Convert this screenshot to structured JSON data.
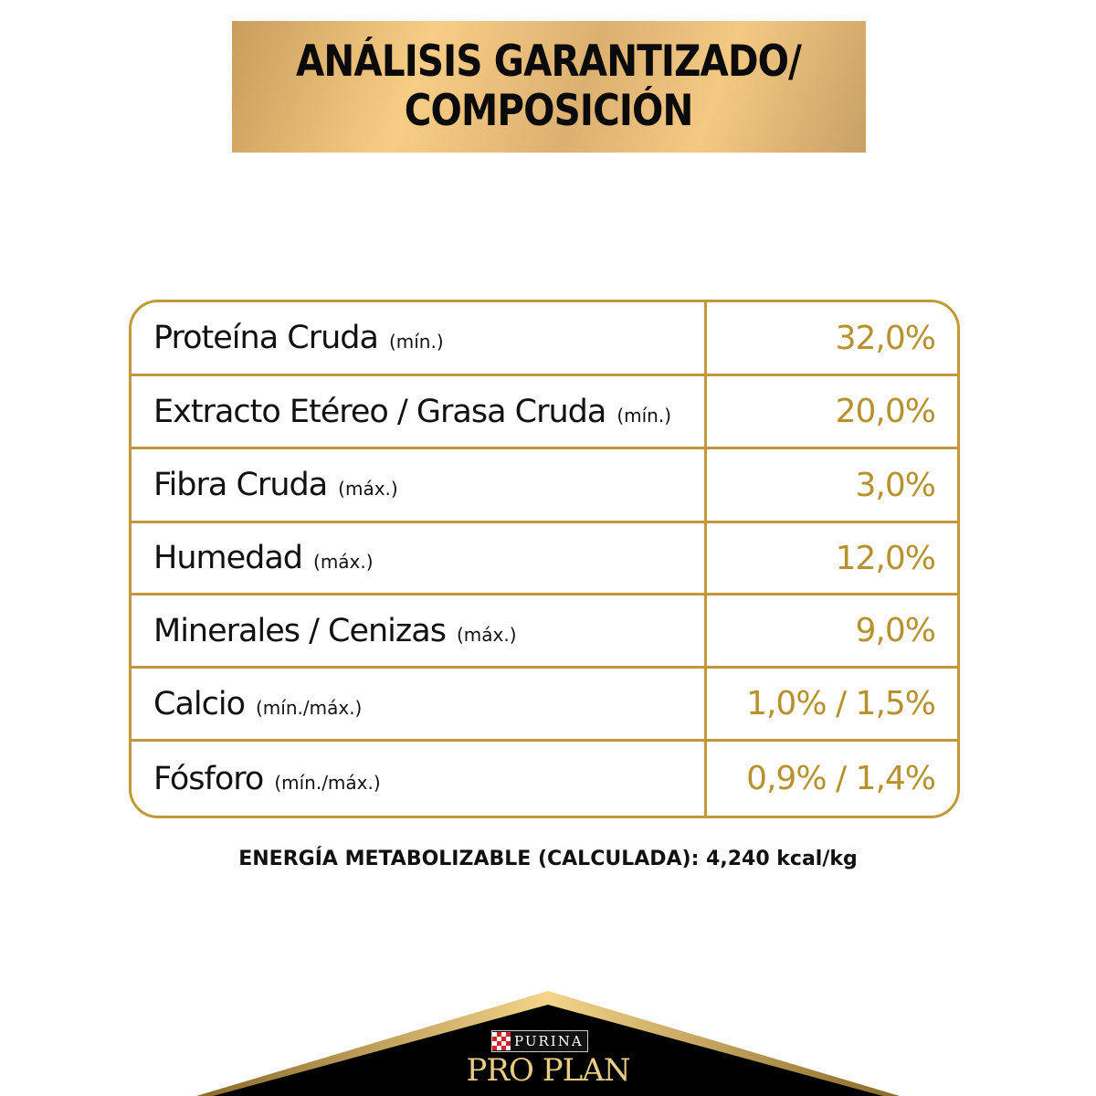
{
  "title": {
    "line1": "ANÁLISIS GARANTIZADO/",
    "line2": "COMPOSICIÓN"
  },
  "rows": [
    {
      "name": "Proteína Cruda",
      "qualifier": "(mín.)",
      "value": "32,0%"
    },
    {
      "name": "Extracto Etéreo / Grasa Cruda",
      "qualifier": "(mín.)",
      "value": "20,0%"
    },
    {
      "name": "Fibra Cruda",
      "qualifier": "(máx.)",
      "value": "3,0%"
    },
    {
      "name": "Humedad",
      "qualifier": "(máx.)",
      "value": "12,0%"
    },
    {
      "name": "Minerales / Cenizas",
      "qualifier": "(máx.)",
      "value": "9,0%"
    },
    {
      "name": "Calcio",
      "qualifier": "(mín./máx.)",
      "value": "1,0% / 1,5%"
    },
    {
      "name": "Fósforo",
      "qualifier": "(mín./máx.)",
      "value": "0,9% / 1,4%"
    }
  ],
  "energy": "ENERGÍA METABOLIZABLE (CALCULADA): 4,240 kcal/kg",
  "brand": {
    "purina": "PURINA",
    "proplan": "PRO PLAN"
  },
  "colors": {
    "gold": "#c09a3a",
    "value_text": "#b8912f",
    "black": "#000000"
  }
}
